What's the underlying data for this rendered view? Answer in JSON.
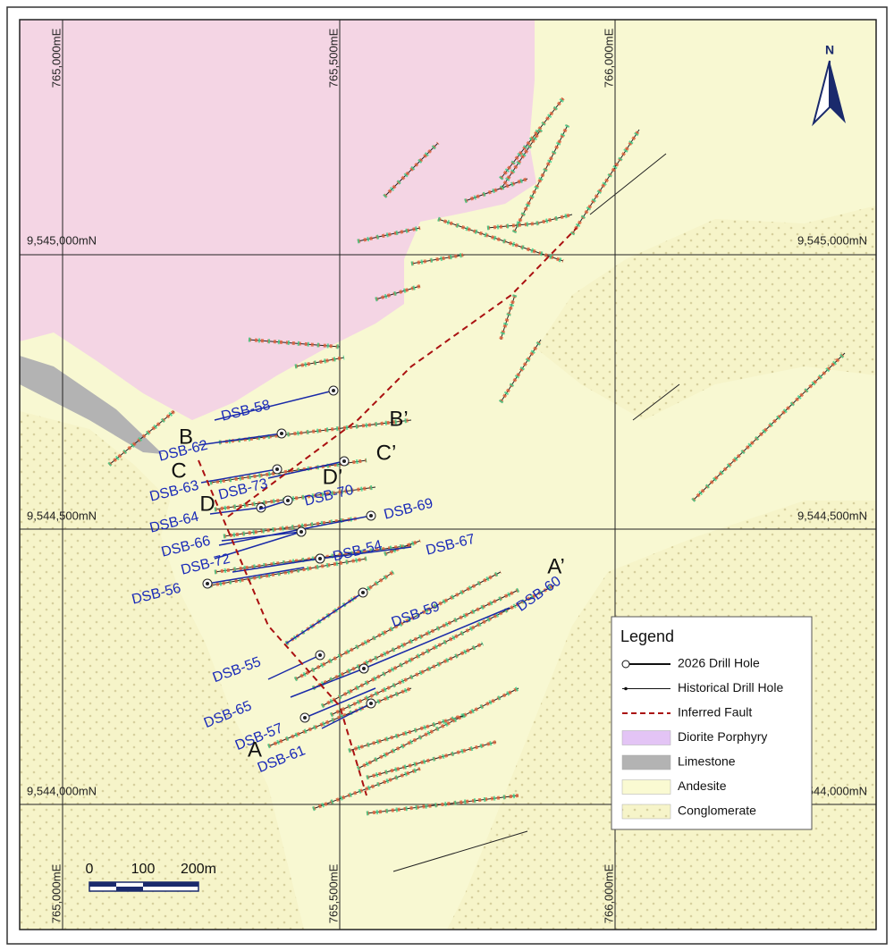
{
  "grid_labels": {
    "eastings": [
      "765,000mE",
      "765,500mE",
      "766,000mE"
    ],
    "northings": [
      "9,545,000mN",
      "9,544,500mN",
      "9,544,000mN"
    ]
  },
  "north": "N",
  "drill_holes": [
    "DSB-58",
    "DSB-62",
    "DSB-63",
    "DSB-73",
    "DSB-64",
    "DSB-70",
    "DSB-69",
    "DSB-66",
    "DSB-54",
    "DSB-67",
    "DSB-72",
    "DSB-56",
    "DSB-55",
    "DSB-59",
    "DSB-60",
    "DSB-65",
    "DSB-57",
    "DSB-61"
  ],
  "sections": [
    "A",
    "A’",
    "B",
    "B’",
    "C",
    "C’",
    "D",
    "D’"
  ],
  "legend": {
    "title": "Legend",
    "items": [
      "2026 Drill Hole",
      "Historical Drill Hole",
      "Inferred Fault",
      "Diorite Porphyry",
      "Limestone",
      "Andesite",
      "Conglomerate"
    ]
  },
  "scale_bar": {
    "labels": [
      "0",
      "100",
      "200m"
    ]
  }
}
